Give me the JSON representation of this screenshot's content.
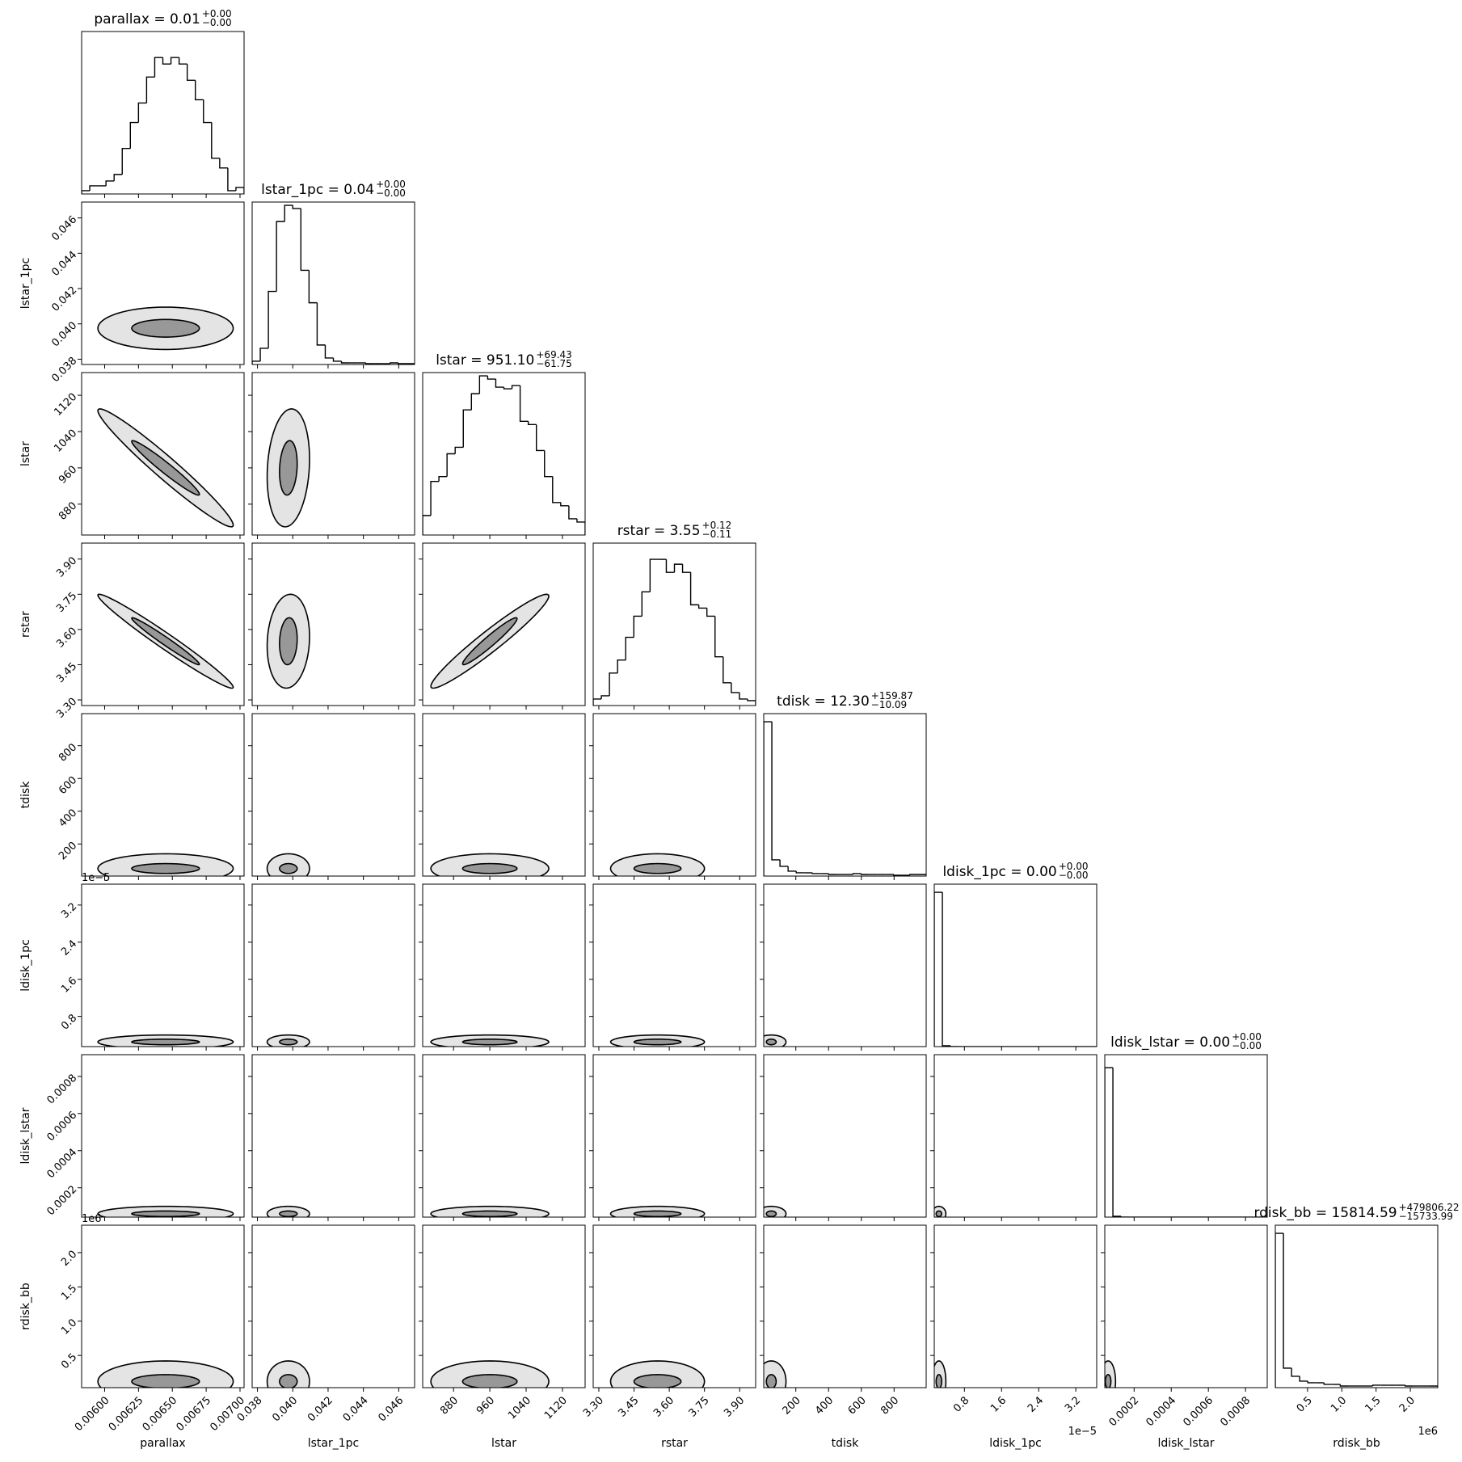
{
  "chart_data": {
    "type": "corner",
    "hist_ylim": [
      0,
      100
    ],
    "variables": [
      {
        "name": "parallax",
        "title": "parallax = 0.01",
        "sup": "+0.00",
        "sub": "−0.00",
        "lim": [
          0.00583,
          0.00703
        ],
        "ticks": [
          {
            "value": 0.006,
            "label": "0.00600"
          },
          0.00625,
          {
            "value": 0.0065,
            "label": "0.00650"
          },
          0.00675,
          {
            "value": 0.007,
            "label": "0.00700"
          }
        ],
        "bins": [
          0.00583,
          0.00589,
          0.00595,
          0.00601,
          0.00607,
          0.00613,
          0.00619,
          0.00625,
          0.00631,
          0.00637,
          0.00643,
          0.00649,
          0.00655,
          0.00661,
          0.00667,
          0.00673,
          0.00679,
          0.00685,
          0.00691,
          0.00697,
          0.00703
        ],
        "counts": [
          2,
          5,
          5,
          8,
          12,
          28,
          44,
          56,
          72,
          84,
          80,
          84,
          80,
          70,
          58,
          44,
          22,
          16,
          2,
          4
        ],
        "center": 0.00645,
        "spread": [
          0.0005,
          0.00025
        ]
      },
      {
        "name": "lstar_1pc",
        "title": "lstar_1pc = 0.04",
        "sup": "+0.00",
        "sub": "−0.00",
        "lim": [
          0.0377,
          0.0469
        ],
        "ticks": [
          0.038,
          {
            "value": 0.04,
            "label": "0.040"
          },
          0.042,
          0.044,
          0.046
        ],
        "bins": [
          0.0377,
          0.03816,
          0.03862,
          0.03908,
          0.03954,
          0.04,
          0.04046,
          0.04092,
          0.04138,
          0.04184,
          0.0423,
          0.04276,
          0.04322,
          0.04368,
          0.04414,
          0.0446,
          0.04506,
          0.04552,
          0.04598,
          0.04644,
          0.0469
        ],
        "counts": [
          2,
          10,
          45,
          88,
          98,
          96,
          58,
          38,
          12,
          4,
          2,
          1,
          1,
          1,
          0.5,
          0.5,
          0.5,
          1,
          0.5,
          0.5
        ],
        "center": 0.03975,
        "spread": [
          0.0012,
          0.0005
        ]
      },
      {
        "name": "lstar",
        "title": "lstar = 951.10",
        "sup": "+69.43",
        "sub": "−61.75",
        "lim": [
          812,
          1170
        ],
        "ticks": [
          880,
          960,
          1040,
          1120
        ],
        "bins": [
          812,
          829.9,
          847.8,
          865.7,
          883.6,
          901.5,
          919.4,
          937.3,
          955.2,
          973.1,
          991,
          1008.9,
          1026.8,
          1044.7,
          1062.6,
          1080.5,
          1098.4,
          1116.3,
          1134.2,
          1152.1,
          1170
        ],
        "counts": [
          12,
          33,
          36,
          50,
          54,
          77,
          87,
          98,
          96,
          91,
          90,
          92,
          70,
          68,
          52,
          36,
          20,
          18,
          10,
          8
        ],
        "center": 960,
        "spread": [
          130,
          60
        ]
      },
      {
        "name": "rstar",
        "title": "rstar = 3.55",
        "sup": "+0.12",
        "sub": "−0.11",
        "lim": [
          3.276,
          3.968
        ],
        "ticks": [
          {
            "value": 3.3,
            "label": "3.30"
          },
          3.45,
          {
            "value": 3.6,
            "label": "3.60"
          },
          3.75,
          {
            "value": 3.9,
            "label": "3.90"
          }
        ],
        "bins": [
          3.276,
          3.3106,
          3.3452,
          3.3798,
          3.4144,
          3.449,
          3.4836,
          3.5182,
          3.5528,
          3.5874,
          3.622,
          3.6566,
          3.6912,
          3.7258,
          3.7604,
          3.795,
          3.8296,
          3.8642,
          3.8988,
          3.9334,
          3.968
        ],
        "counts": [
          4,
          6,
          20,
          28,
          42,
          55,
          70,
          90,
          90,
          82,
          87,
          82,
          62,
          60,
          55,
          30,
          14,
          8,
          4,
          3
        ],
        "center": 3.55,
        "spread": [
          0.2,
          0.1
        ]
      },
      {
        "name": "tdisk",
        "title": "tdisk = 12.30",
        "sup": "+159.87",
        "sub": "−10.09",
        "lim": [
          4,
          996
        ],
        "ticks": [
          200,
          400,
          600,
          800
        ],
        "bins": [
          4,
          53.6,
          103.2,
          152.8,
          202.4,
          252,
          301.6,
          351.2,
          400.8,
          450.4,
          500,
          549.6,
          599.2,
          648.8,
          698.4,
          748,
          797.6,
          847.2,
          896.8,
          946.4,
          996
        ],
        "counts": [
          95,
          10,
          6,
          3,
          2,
          2,
          1.5,
          1.5,
          1,
          1,
          1,
          1.5,
          1,
          1,
          1,
          1,
          0.5,
          0.5,
          1,
          1
        ],
        "center": 50,
        "spread": [
          90,
          30
        ]
      },
      {
        "name": "ldisk_1pc",
        "title": "ldisk_1pc = 0.00",
        "sup": "+0.00",
        "sub": "−0.00",
        "offset": "1e−5",
        "lim": [
          0.15,
          3.65
        ],
        "ticks": [
          0.8,
          1.6,
          2.4,
          3.2
        ],
        "bins": [
          0.15,
          0.325,
          0.5,
          0.675,
          0.85,
          1.025,
          1.2,
          1.375,
          1.55,
          1.725,
          1.9,
          2.075,
          2.25,
          2.425,
          2.6,
          2.775,
          2.95,
          3.125,
          3.3,
          3.475,
          3.65
        ],
        "counts": [
          95,
          0.5,
          0,
          0,
          0,
          0,
          0,
          0,
          0,
          0,
          0,
          0,
          0,
          0,
          0,
          0,
          0,
          0,
          0,
          0
        ],
        "center": 0.25,
        "spread": [
          0.15,
          0.06
        ]
      },
      {
        "name": "ldisk_lstar",
        "title": "ldisk_lstar = 0.00",
        "sup": "+0.00",
        "sub": "−0.00",
        "lim": [
          4.2e-05,
          0.000917
        ],
        "ticks": [
          0.0002,
          0.0004,
          0.0006,
          0.0008
        ],
        "bins": [
          4.2e-05,
          8.575e-05,
          0.0001295,
          0.00017325,
          0.000217,
          0.00026075,
          0.0003045,
          0.00034825,
          0.000392,
          0.00043575,
          0.0004795,
          0.00052325,
          0.000567,
          0.00061075,
          0.0006545,
          0.00069825,
          0.000742,
          0.00078575,
          0.0008295,
          0.00087325,
          0.000917
        ],
        "counts": [
          92,
          0.5,
          0,
          0,
          0,
          0,
          0,
          0,
          0,
          0,
          0,
          0,
          0,
          0,
          0,
          0,
          0,
          0,
          0,
          0
        ],
        "center": 6e-05,
        "spread": [
          4e-05,
          1.5e-05
        ]
      },
      {
        "name": "rdisk_bb",
        "title": "rdisk_bb = 15814.59",
        "sup": "+479806.22",
        "sub": "−15733.99",
        "offset": "1e6",
        "lim": [
          0.03,
          2.4
        ],
        "ticks": [
          0.5,
          {
            "value": 1,
            "label": "1.0"
          },
          1.5,
          {
            "value": 2,
            "label": "2.0"
          }
        ],
        "bins": [
          0.03,
          0.1485,
          0.267,
          0.3855,
          0.504,
          0.6225,
          0.741,
          0.8595,
          0.978,
          1.0965,
          1.215,
          1.3335,
          1.452,
          1.5705,
          1.689,
          1.8075,
          1.926,
          2.0445,
          2.163,
          2.2815,
          2.4
        ],
        "counts": [
          95,
          12,
          7,
          4,
          3,
          3,
          2,
          2,
          1,
          1,
          1,
          1,
          1.5,
          1.5,
          1.5,
          1.5,
          1,
          1,
          1,
          1
        ],
        "center": 0.12,
        "spread": [
          0.3,
          0.1
        ]
      }
    ],
    "correlations": [
      [
        0
      ],
      [
        -0.97,
        0.15
      ],
      [
        -0.98,
        0.1,
        0.96
      ],
      [
        0,
        0,
        0,
        0
      ],
      [
        0,
        0,
        0,
        0,
        0
      ],
      [
        0,
        0,
        0,
        0,
        0,
        0
      ],
      [
        0,
        0,
        0,
        0,
        0,
        0,
        0
      ]
    ]
  }
}
